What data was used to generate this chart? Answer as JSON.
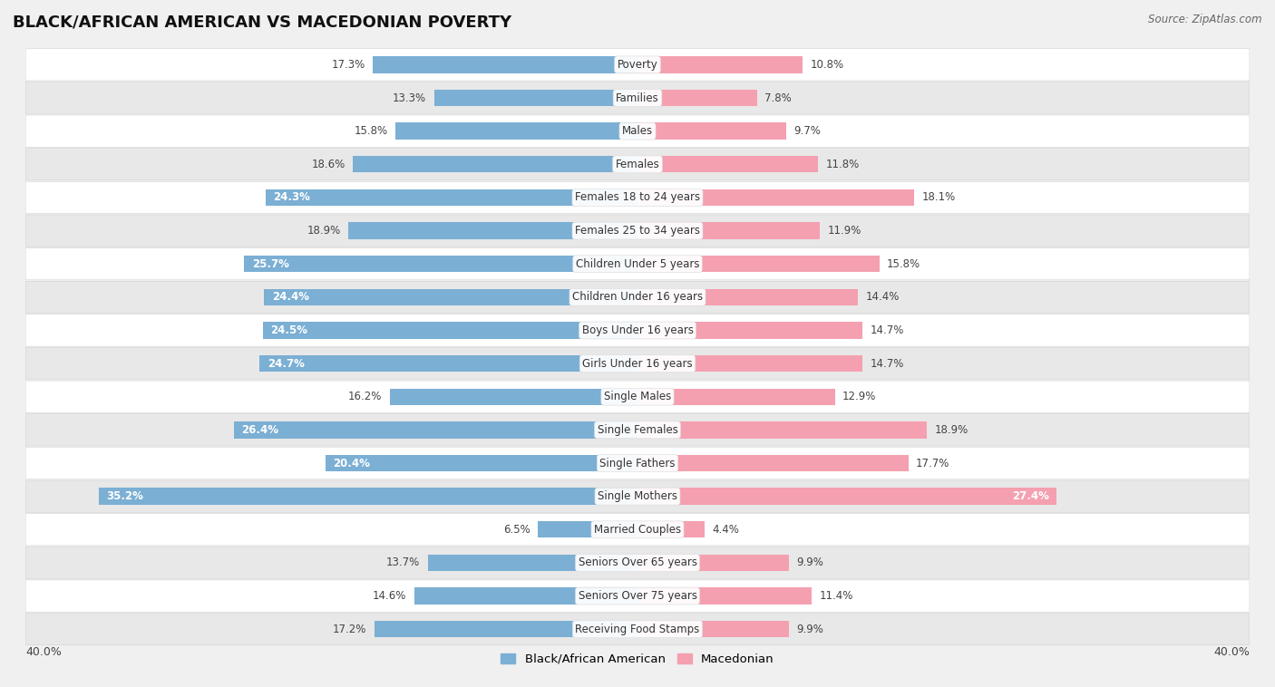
{
  "title": "BLACK/AFRICAN AMERICAN VS MACEDONIAN POVERTY",
  "source": "Source: ZipAtlas.com",
  "categories": [
    "Poverty",
    "Families",
    "Males",
    "Females",
    "Females 18 to 24 years",
    "Females 25 to 34 years",
    "Children Under 5 years",
    "Children Under 16 years",
    "Boys Under 16 years",
    "Girls Under 16 years",
    "Single Males",
    "Single Females",
    "Single Fathers",
    "Single Mothers",
    "Married Couples",
    "Seniors Over 65 years",
    "Seniors Over 75 years",
    "Receiving Food Stamps"
  ],
  "black_values": [
    17.3,
    13.3,
    15.8,
    18.6,
    24.3,
    18.9,
    25.7,
    24.4,
    24.5,
    24.7,
    16.2,
    26.4,
    20.4,
    35.2,
    6.5,
    13.7,
    14.6,
    17.2
  ],
  "macedonian_values": [
    10.8,
    7.8,
    9.7,
    11.8,
    18.1,
    11.9,
    15.8,
    14.4,
    14.7,
    14.7,
    12.9,
    18.9,
    17.7,
    27.4,
    4.4,
    9.9,
    11.4,
    9.9
  ],
  "black_color": "#7bafd4",
  "macedonian_color": "#f4a0b0",
  "black_label": "Black/African American",
  "macedonian_label": "Macedonian",
  "xlim": 40.0,
  "background_color": "#f0f0f0",
  "row_color_odd": "#ffffff",
  "row_color_even": "#e8e8e8",
  "title_fontsize": 13,
  "label_fontsize": 8.5,
  "value_fontsize": 8.5,
  "legend_fontsize": 9.5,
  "white_text_threshold": 20.0,
  "bar_height": 0.5
}
